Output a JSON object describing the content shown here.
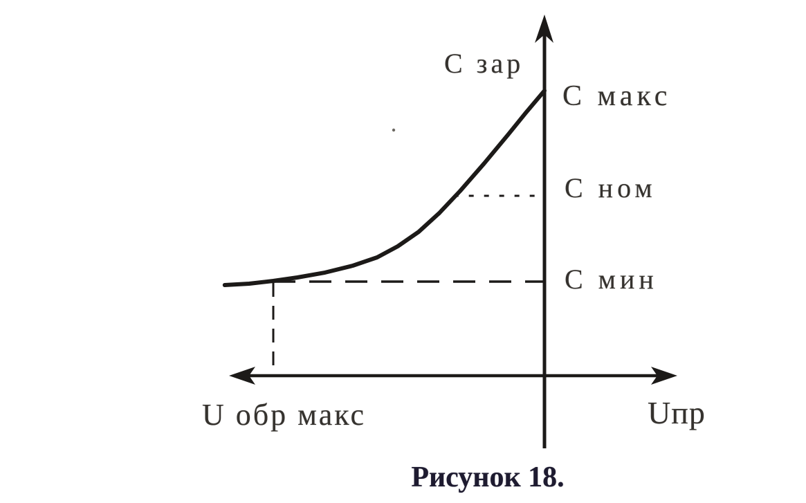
{
  "caption": "Рисунок 18.",
  "labels": {
    "y_axis": "С зар",
    "x_axis": "Uпр",
    "c_maks": "С макс",
    "c_nom": "С ном",
    "c_min": "С мин",
    "u_obr_maks": "U обр макс"
  },
  "colors": {
    "background": "#ffffff",
    "ink": "#1c1a18",
    "label_ink": "#35322e",
    "caption_ink": "#1e1b30"
  },
  "chart_data": {
    "type": "line",
    "title": "Рисунок 18.",
    "xlabel": "Uпр",
    "ylabel": "С зар",
    "x_left_region_label": "U обр макс",
    "grid": false,
    "legend": false,
    "axis_numeric_ticks": false,
    "x_range": [
      -1.18,
      0.49
    ],
    "y_range": [
      0,
      3.35
    ],
    "x_units_note": "relative, U обр макс = -1.0, y-axis at 0",
    "y_units_note": "relative, С мин = 1.0",
    "series": [
      {
        "name": "С зар (U)",
        "points": [
          [
            -1.179,
            0.963
          ],
          [
            -1.089,
            0.978
          ],
          [
            -1.0,
            1.007
          ],
          [
            -0.911,
            1.044
          ],
          [
            -0.809,
            1.096
          ],
          [
            -0.707,
            1.169
          ],
          [
            -0.617,
            1.257
          ],
          [
            -0.541,
            1.375
          ],
          [
            -0.464,
            1.529
          ],
          [
            -0.388,
            1.728
          ],
          [
            -0.311,
            1.963
          ],
          [
            -0.222,
            2.257
          ],
          [
            -0.133,
            2.566
          ],
          [
            -0.069,
            2.794
          ],
          [
            0.0,
            3.029
          ]
        ]
      }
    ],
    "levels": [
      {
        "label": "С макс",
        "value": 3.03
      },
      {
        "label": "С ном",
        "value": 1.91
      },
      {
        "label": "С мин",
        "value": 1.0
      }
    ],
    "markers": [
      {
        "label": "U обр макс",
        "value": -1.0
      }
    ],
    "reference_lines": [
      {
        "name": "c-nom-dashed-line",
        "x1": -0.335,
        "y1": 1.912,
        "x2": 0.005,
        "y2": 1.912,
        "dash": "7 15",
        "width": 3
      },
      {
        "name": "c-min-dashed-line",
        "x1": -1.0,
        "y1": 1.0,
        "x2": 0.005,
        "y2": 1.0,
        "dash": "32 20",
        "width": 3.5
      },
      {
        "name": "u-obr-maks-dashed-line",
        "x1": -1.0,
        "y1": 0.985,
        "x2": -1.0,
        "y2": 0.005,
        "dash": "20 13",
        "width": 3
      }
    ]
  }
}
